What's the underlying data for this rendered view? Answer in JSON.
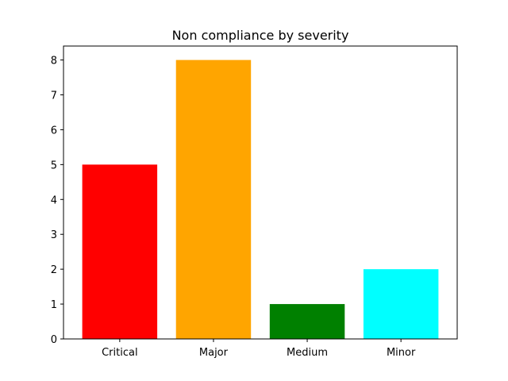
{
  "chart_data": {
    "type": "bar",
    "title": "Non compliance by severity",
    "xlabel": "",
    "ylabel": "",
    "categories": [
      "Critical",
      "Major",
      "Medium",
      "Minor"
    ],
    "values": [
      5,
      8,
      1,
      2
    ],
    "colors": [
      "#ff0000",
      "#ffa500",
      "#008000",
      "#00ffff"
    ],
    "ylim": [
      0,
      8.4
    ],
    "yticks": [
      0,
      1,
      2,
      3,
      4,
      5,
      6,
      7,
      8
    ],
    "grid": false,
    "legend": "none"
  }
}
